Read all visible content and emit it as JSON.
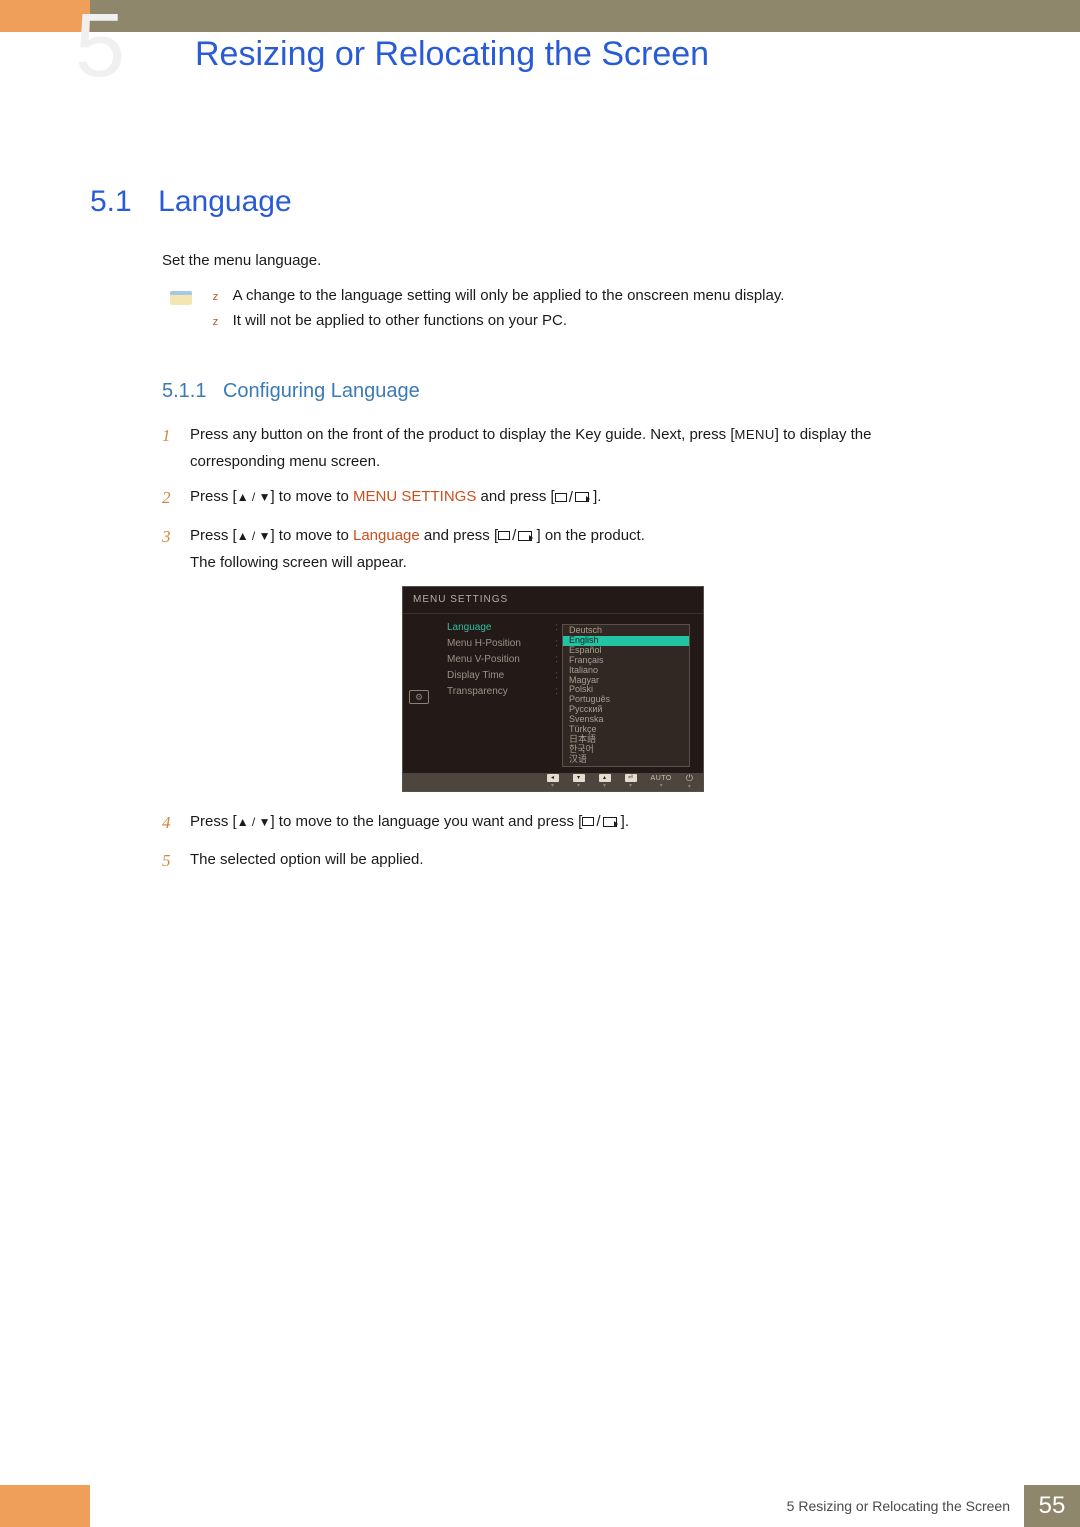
{
  "chapter_number": "5",
  "page_title": "Resizing or Relocating the Screen",
  "section": {
    "num": "5.1",
    "title": "Language"
  },
  "intro": "Set the menu language.",
  "notes": [
    "A change to the language setting will only be applied to the onscreen menu display.",
    "It will not be applied to other functions on your PC."
  ],
  "subsection": {
    "num": "5.1.1",
    "title": "Configuring Language"
  },
  "steps": {
    "s1": {
      "num": "1",
      "pre": "Press any button on the front of the product to display the Key guide. Next, press [",
      "btn": "MENU",
      "post": "] to display the corresponding menu screen."
    },
    "s2": {
      "num": "2",
      "pre": "Press [",
      "mid": "] to move to ",
      "target": "MENU SETTINGS",
      "post": " and press [",
      "end": " ]."
    },
    "s3": {
      "num": "3",
      "pre": "Press [",
      "mid": "] to move to ",
      "target": "Language",
      "post": " and press [",
      "end": " ] on the product.",
      "tail": "The following screen will appear."
    },
    "s4": {
      "num": "4",
      "pre": "Press [",
      "mid": "] to move to the language you want and press [",
      "end": "   ]."
    },
    "s5": {
      "num": "5",
      "text": "The selected option will be applied."
    }
  },
  "osd": {
    "title": "MENU SETTINGS",
    "left_items": [
      {
        "label": "Language",
        "selected": true
      },
      {
        "label": "Menu H-Position",
        "selected": false
      },
      {
        "label": "Menu V-Position",
        "selected": false
      },
      {
        "label": "Display Time",
        "selected": false
      },
      {
        "label": "Transparency",
        "selected": false
      }
    ],
    "languages": [
      {
        "label": "Deutsch",
        "highlighted": false
      },
      {
        "label": "English",
        "highlighted": true
      },
      {
        "label": "Español",
        "highlighted": false
      },
      {
        "label": "Français",
        "highlighted": false
      },
      {
        "label": "Italiano",
        "highlighted": false
      },
      {
        "label": "Magyar",
        "highlighted": false
      },
      {
        "label": "Polski",
        "highlighted": false
      },
      {
        "label": "Português",
        "highlighted": false
      },
      {
        "label": "Русский",
        "highlighted": false
      },
      {
        "label": "Svenska",
        "highlighted": false
      },
      {
        "label": "Türkçe",
        "highlighted": false
      },
      {
        "label": "日本語",
        "highlighted": false
      },
      {
        "label": "한국어",
        "highlighted": false
      },
      {
        "label": "汉语",
        "highlighted": false
      }
    ],
    "buttons": {
      "auto": "AUTO"
    }
  },
  "footer": {
    "text": "5 Resizing or Relocating the Screen",
    "page": "55"
  },
  "colors": {
    "orange_accent": "#ef9f5a",
    "olive": "#8f876b",
    "blue_heading": "#2a5bd7",
    "sub_blue": "#3b7bb5",
    "step_orange": "#d1873f",
    "emphasis_orange": "#c94f1e",
    "osd_bg": "#231a17",
    "osd_highlight": "#22c4a3"
  }
}
